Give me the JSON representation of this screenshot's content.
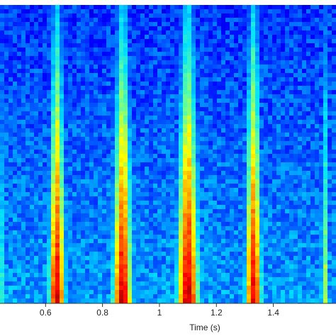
{
  "chart_data": {
    "type": "heatmap",
    "title": "",
    "xlabel": "Time (s)",
    "ylabel": "",
    "xlim": [
      0.44,
      1.62
    ],
    "xticks": [
      0.6,
      0.8,
      1,
      1.2,
      1.4
    ],
    "xtick_labels": [
      "0.6",
      "0.8",
      "1",
      "1.2",
      "1.4"
    ],
    "colormap": [
      "#00008f",
      "#0000ff",
      "#0070ff",
      "#00e0ff",
      "#60ff9f",
      "#ffff00",
      "#ff8000",
      "#ff0000",
      "#8f0000"
    ],
    "background_intensity": 0.18,
    "bursts": [
      {
        "center": 0.44,
        "width": 0.03,
        "peak": 0.55
      },
      {
        "center": 0.64,
        "width": 0.06,
        "peak": 0.93
      },
      {
        "center": 0.87,
        "width": 0.07,
        "peak": 0.94
      },
      {
        "center": 1.1,
        "width": 0.08,
        "peak": 0.95
      },
      {
        "center": 1.33,
        "width": 0.06,
        "peak": 0.92
      },
      {
        "center": 1.58,
        "width": 0.03,
        "peak": 0.6
      }
    ]
  }
}
